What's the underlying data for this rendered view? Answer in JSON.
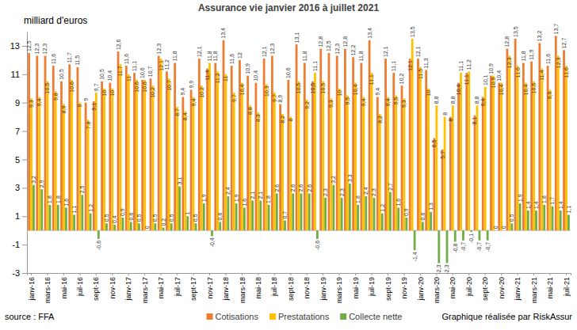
{
  "chart_data": {
    "type": "bar",
    "title": "Assurance vie janvier 2016 à juillet 2021",
    "ylabel": "milliard d'euros",
    "annotations": [
      "source : FFA",
      "Graphique réalisée par RiskAssur"
    ],
    "categories": [
      "janv-16",
      null,
      "mars-16",
      null,
      "mai-16",
      null,
      "juil-16",
      null,
      "sept-16",
      null,
      "nov-16",
      null,
      "janv-17",
      null,
      "mars-17",
      null,
      "mai-17",
      null,
      "juil-17",
      null,
      "sept-17",
      null,
      "nov-17",
      null,
      "janv-18",
      null,
      "mars-18",
      null,
      "mai-18",
      null,
      "juil-18",
      null,
      "sept-18",
      null,
      "nov-18",
      null,
      "janv-19",
      null,
      "mars-19",
      null,
      "mai-19",
      null,
      "juil-19",
      null,
      "sept-19",
      null,
      "nov-19",
      null,
      "janv-20",
      null,
      "mars-20",
      null,
      "mai-20",
      null,
      "juil-20",
      null,
      "sept-20",
      null,
      "nov-20",
      null,
      "janv-21",
      null,
      "mars-21",
      null,
      "mai-21",
      null,
      "juil-21"
    ],
    "series": [
      {
        "name": "Cotisations",
        "color": "#ed7d31",
        "values": [
          12.5,
          12.3,
          12.3,
          11.6,
          10.5,
          11.7,
          11.5,
          9,
          9.1,
          10.5,
          10.4,
          12.6,
          11.6,
          11.1,
          10.6,
          10.7,
          12.3,
          11.2,
          11.8,
          9.4,
          9.9,
          12.1,
          11.4,
          11.8,
          13.4,
          11.6,
          12,
          10.9,
          10.4,
          12.1,
          12.3,
          8.9,
          10.6,
          13.1,
          11.8,
          10.5,
          12.8,
          12.5,
          12.3,
          12.8,
          12.2,
          11.8,
          13.4,
          9.4,
          12.1,
          11.1,
          10.2,
          12.1,
          12.1,
          11.3,
          6.5,
          5.7,
          8,
          10.4,
          11.1,
          8.1,
          9.4,
          10.9,
          10.4,
          12.8,
          13.5,
          11.8,
          11.9,
          13.2,
          11.6,
          13.7,
          12.7
        ],
        "value_labels": [
          "12,5",
          "12,3",
          "12,3",
          "11,6",
          "10,5",
          "11,7",
          "11,5",
          "9",
          "9,1",
          "10,5",
          "10,4",
          "12,6",
          "11,6",
          "11,1",
          "10,6",
          "10,7",
          "12,3",
          "11,2",
          "11,8",
          "9,4",
          "9,9",
          "12,1",
          "11,4",
          "11,8",
          "13,4",
          "11,6",
          "12",
          "10,9",
          "10,4",
          "12,1",
          "12,3",
          "8,9",
          "10,6",
          "13,1",
          "11,8",
          "10,5",
          "12,8",
          "12,5",
          "12,3",
          "12,8",
          "12,2",
          "11,8",
          "13,4",
          "9,4",
          "12,1",
          "11,1",
          "10,2",
          "12,1",
          "12,1",
          "11,3",
          "6,5",
          "5,7",
          "8",
          "10,4",
          "11,1",
          "8,1",
          "9,4",
          "10,9",
          "10,4",
          "12,8",
          "13,5",
          "11,8",
          "11,9",
          "13,2",
          "11,6",
          "13,7",
          "12,7"
        ]
      },
      {
        "name": "Prestatations",
        "color": "#ffc000",
        "values": [
          9.3,
          9.4,
          10.5,
          9.8,
          8.9,
          10.6,
          9,
          7.8,
          9.7,
          10,
          10,
          11.7,
          11,
          10.6,
          10.6,
          10.2,
          12.1,
          10.7,
          8.7,
          8.4,
          9.4,
          10.2,
          11.8,
          11.2,
          11,
          9.7,
          10.4,
          8.8,
          8.3,
          10.3,
          9.7,
          8.2,
          8,
          10.5,
          9.2,
          11.1,
          10.5,
          9.3,
          10,
          9.5,
          10.4,
          9.4,
          11.1,
          8.2,
          9.4,
          9.5,
          9.3,
          13.5,
          11.5,
          10,
          8.8,
          8,
          8.8,
          11.1,
          11.2,
          8.8,
          10.1,
          10.9,
          10.4,
          12.3,
          11.6,
          10.4,
          10.5,
          11.4,
          9.9,
          12.3,
          11.6
        ],
        "value_labels": [
          "9,3",
          "9,4",
          "10,5",
          "9,8",
          "8,9",
          "10,6",
          "9",
          "7,8",
          "9,7",
          "10",
          "10",
          "11,7",
          "11",
          "10,6",
          "10,6",
          "10,2",
          "12,1",
          "10,7",
          "8,7",
          "8,4",
          "9,4",
          "10,2",
          "11,8",
          "11,2",
          "11",
          "9,7",
          "10,4",
          "8,8",
          "8,3",
          "10,3",
          "9,7",
          "8,2",
          "8",
          "10,5",
          "9,2",
          "11,1",
          "10,5",
          "9,3",
          "10",
          "9,5",
          "10,4",
          "9,4",
          "11,1",
          "8,2",
          "9,4",
          "9,5",
          "9,3",
          "13,5",
          "11,5",
          "10",
          "8,8",
          "8",
          "8,8",
          "11,1",
          "11,2",
          "8,8",
          "10,1",
          "10,9",
          "10,4",
          "12,3",
          "11,6",
          "10,4",
          "10,5",
          "11,4",
          "9,9",
          "12,3",
          "11,6"
        ]
      },
      {
        "name": "Collecte nette",
        "color": "#70ad47",
        "values": [
          3.2,
          2.9,
          1.8,
          1.8,
          1.6,
          1.1,
          2.5,
          1.2,
          -0.6,
          0.5,
          0.4,
          0.9,
          0.6,
          0.5,
          0,
          0.5,
          0.2,
          0.5,
          3.1,
          1,
          0.5,
          1.9,
          -0.4,
          0.6,
          2.4,
          1.9,
          1.6,
          2.1,
          2.1,
          1.8,
          2.6,
          0.7,
          2.6,
          2.6,
          2.6,
          -0.6,
          2.3,
          3.2,
          2.3,
          3.3,
          1.8,
          2.4,
          2.3,
          1.2,
          2.7,
          1.6,
          0.9,
          -1.4,
          0.6,
          1.3,
          -2.3,
          -2.3,
          -0.8,
          -0.7,
          -0.1,
          -0.7,
          -0.7,
          0,
          0,
          0.5,
          1.9,
          1.4,
          1.4,
          1.8,
          1.7,
          1.4,
          1.1
        ],
        "value_labels": [
          "3,2",
          "2,9",
          "1,8",
          "1,8",
          "1,6",
          "1,1",
          "2,5",
          "1,2",
          "-0,6",
          "0,5",
          "0,4",
          "0,9",
          "0,6",
          "0,5",
          "0",
          "0,5",
          "0,2",
          "0,5",
          "3,1",
          "1",
          "0,5",
          "1,9",
          "-0,4",
          "0,6",
          "2,4",
          "1,9",
          "1,6",
          "2,1",
          "2,1",
          "1,8",
          "2,6",
          "0,7",
          "2,6",
          "2,6",
          "2,6",
          "-0,6",
          "2,3",
          "3,2",
          "2,3",
          "3,3",
          "1,8",
          "2,4",
          "2,3",
          "1,2",
          "2,7",
          "1,6",
          "0,9",
          "-1,4",
          "0,6",
          "1,3",
          "-2,3",
          "-2,3",
          "-0,8",
          "-0,7",
          "-0,1",
          "-0,7",
          "-0,7",
          "0",
          "0",
          "0,5",
          "1,9",
          "1,4",
          "1,4",
          "1,8",
          "1,7",
          "1,4",
          "1,1"
        ]
      }
    ],
    "ylim": [
      -3,
      14
    ],
    "yticks": [
      -3,
      -1,
      1,
      3,
      5,
      7,
      9,
      11,
      13
    ],
    "grid": false,
    "data_labels": true,
    "legend": "bottom"
  }
}
